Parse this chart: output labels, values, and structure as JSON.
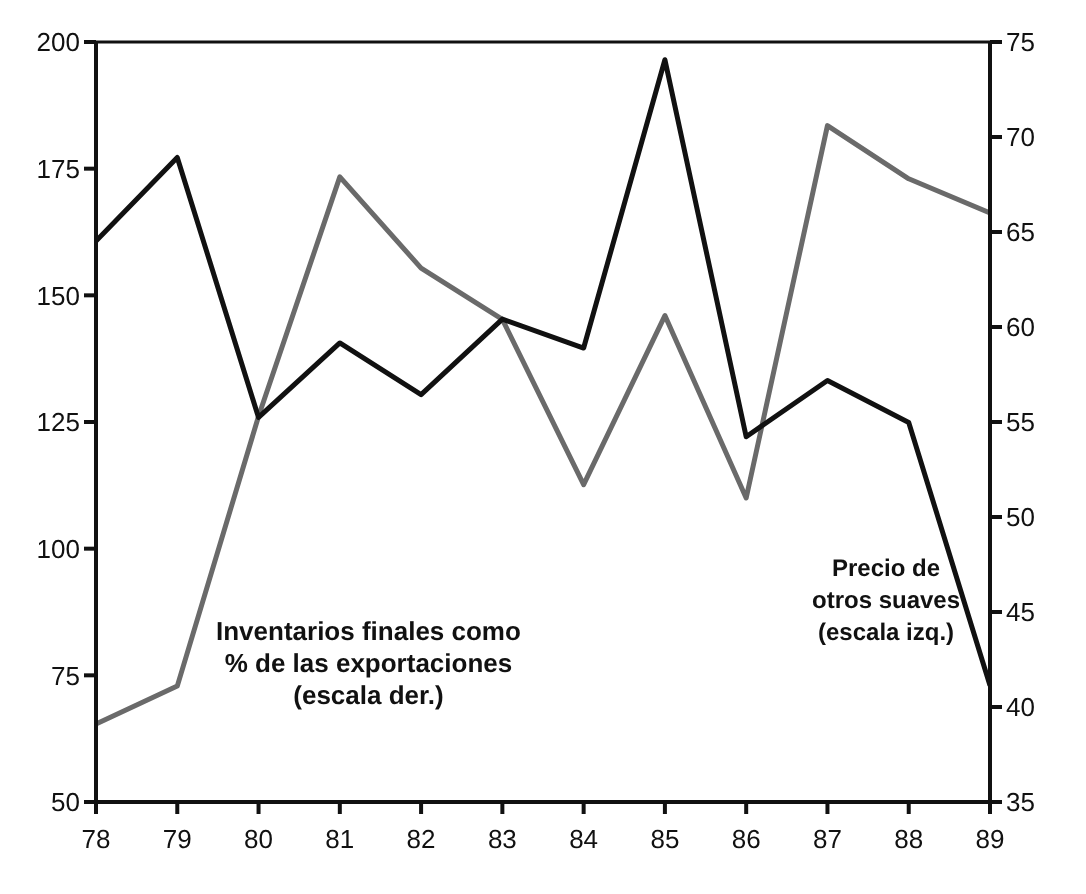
{
  "chart_data": {
    "type": "line",
    "x": [
      78,
      79,
      80,
      81,
      82,
      83,
      84,
      85,
      86,
      87,
      88,
      89
    ],
    "series": [
      {
        "name": "Inventarios finales como % de las exportaciones (escala der.)",
        "color": "#6a6a6a",
        "axis": "y2",
        "values": [
          39.1,
          41.1,
          55.3,
          67.9,
          63.1,
          60.4,
          51.7,
          60.6,
          51.0,
          70.6,
          67.8,
          66.0
        ]
      },
      {
        "name": "Precio de otros suaves (escala izq.)",
        "color": "#111111",
        "values": [
          160.7,
          177.2,
          125.9,
          140.6,
          130.4,
          145.3,
          139.6,
          196.5,
          122.1,
          133.2,
          124.9,
          73
        ]
      }
    ],
    "xlim": [
      78,
      89
    ],
    "xticks": [
      78,
      79,
      80,
      81,
      82,
      83,
      84,
      85,
      86,
      87,
      88,
      89
    ],
    "ylim": [
      50,
      200
    ],
    "yticks": [
      50,
      75,
      100,
      125,
      150,
      175,
      200
    ],
    "y2lim": [
      35,
      75
    ],
    "y2ticks": [
      35,
      40,
      45,
      50,
      55,
      60,
      65,
      70,
      75
    ],
    "grid": false,
    "legend": false,
    "marker": "none",
    "line_style": "solid"
  }
}
